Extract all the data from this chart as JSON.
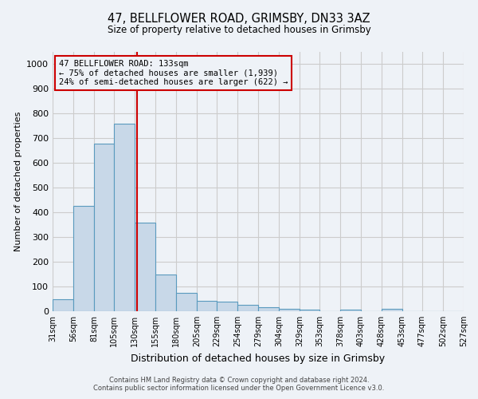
{
  "title1": "47, BELLFLOWER ROAD, GRIMSBY, DN33 3AZ",
  "title2": "Size of property relative to detached houses in Grimsby",
  "xlabel": "Distribution of detached houses by size in Grimsby",
  "ylabel": "Number of detached properties",
  "bin_edges": [
    31,
    56,
    81,
    105,
    130,
    155,
    180,
    205,
    229,
    254,
    279,
    304,
    329,
    353,
    378,
    403,
    428,
    453,
    477,
    502,
    527
  ],
  "bin_labels": [
    "31sqm",
    "56sqm",
    "81sqm",
    "105sqm",
    "130sqm",
    "155sqm",
    "180sqm",
    "205sqm",
    "229sqm",
    "254sqm",
    "279sqm",
    "304sqm",
    "329sqm",
    "353sqm",
    "378sqm",
    "403sqm",
    "428sqm",
    "453sqm",
    "477sqm",
    "502sqm",
    "527sqm"
  ],
  "counts": [
    50,
    425,
    680,
    760,
    360,
    150,
    75,
    42,
    40,
    27,
    15,
    10,
    5,
    0,
    8,
    0,
    10,
    0,
    0,
    0
  ],
  "bar_facecolor": "#c8d8e8",
  "bar_edgecolor": "#5a9abe",
  "red_line_x": 133,
  "annotation_text": "47 BELLFLOWER ROAD: 133sqm\n← 75% of detached houses are smaller (1,939)\n24% of semi-detached houses are larger (622) →",
  "annotation_box_color": "#cc0000",
  "ylim": [
    0,
    1050
  ],
  "yticks": [
    0,
    100,
    200,
    300,
    400,
    500,
    600,
    700,
    800,
    900,
    1000
  ],
  "grid_color": "#cccccc",
  "footer1": "Contains HM Land Registry data © Crown copyright and database right 2024.",
  "footer2": "Contains public sector information licensed under the Open Government Licence v3.0.",
  "bg_color": "#eef2f7"
}
